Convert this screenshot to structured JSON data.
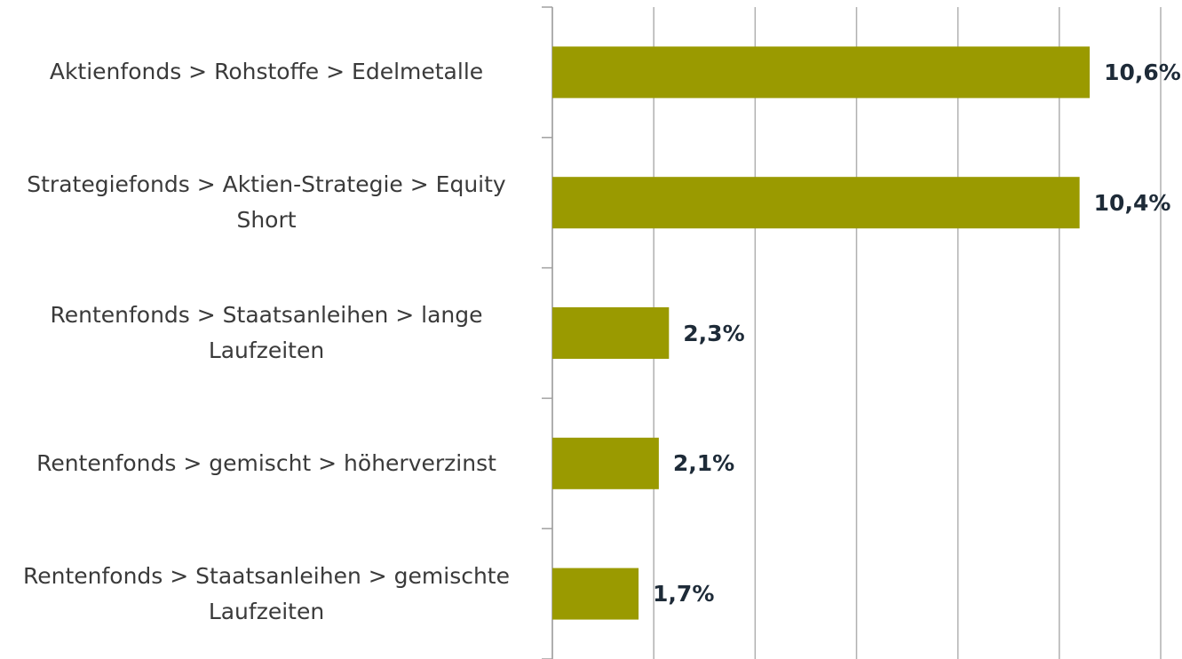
{
  "chart_data": {
    "type": "bar",
    "orientation": "horizontal",
    "categories": [
      "Aktienfonds > Rohstoffe > Edelmetalle",
      "Strategiefonds > Aktien-Strategie > Equity Short",
      "Rentenfonds > Staatsanleihen > lange Laufzeiten",
      "Rentenfonds > gemischt > höherverzinst",
      "Rentenfonds > Staatsanleihen > gemischte Laufzeiten"
    ],
    "values": [
      10.6,
      10.4,
      2.3,
      2.1,
      1.7
    ],
    "value_labels": [
      "10,6%",
      "10,4%",
      "2,3%",
      "2,1%",
      "1,7%"
    ],
    "color": "#9a9a00",
    "xlim": [
      0,
      12
    ],
    "xticks": [
      0,
      2,
      4,
      6,
      8,
      10,
      12
    ],
    "grid": true
  }
}
